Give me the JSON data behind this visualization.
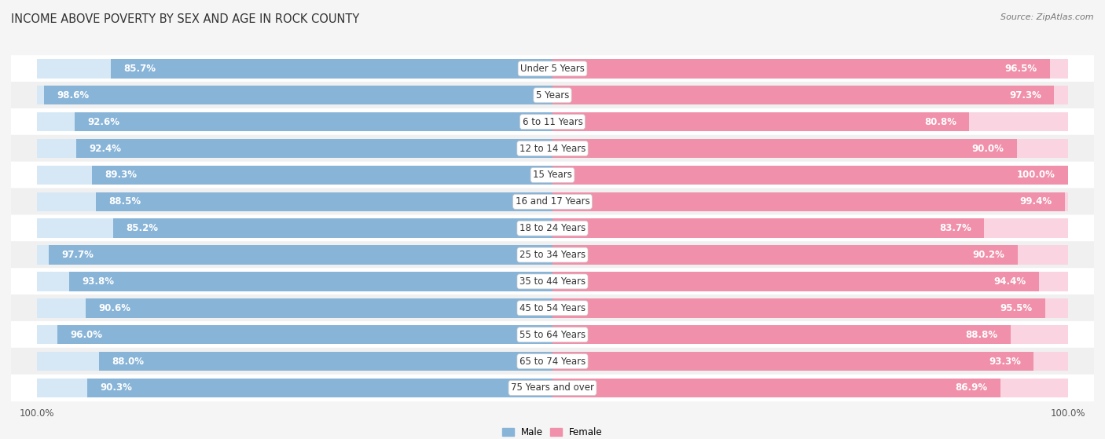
{
  "title": "INCOME ABOVE POVERTY BY SEX AND AGE IN ROCK COUNTY",
  "source": "Source: ZipAtlas.com",
  "categories": [
    "Under 5 Years",
    "5 Years",
    "6 to 11 Years",
    "12 to 14 Years",
    "15 Years",
    "16 and 17 Years",
    "18 to 24 Years",
    "25 to 34 Years",
    "35 to 44 Years",
    "45 to 54 Years",
    "55 to 64 Years",
    "65 to 74 Years",
    "75 Years and over"
  ],
  "male_values": [
    85.7,
    98.6,
    92.6,
    92.4,
    89.3,
    88.5,
    85.2,
    97.7,
    93.8,
    90.6,
    96.0,
    88.0,
    90.3
  ],
  "female_values": [
    96.5,
    97.3,
    80.8,
    90.0,
    100.0,
    99.4,
    83.7,
    90.2,
    94.4,
    95.5,
    88.8,
    93.3,
    86.9
  ],
  "male_color": "#88b4d8",
  "female_color": "#f090aa",
  "male_bg_color": "#d6e8f5",
  "female_bg_color": "#fad4e0",
  "row_bg_light": "#f0f0f0",
  "row_bg_white": "#ffffff",
  "bg_color": "#f5f5f5",
  "max_value": 100.0,
  "bar_height": 0.72,
  "label_fontsize": 8.5,
  "title_fontsize": 10.5,
  "source_fontsize": 8
}
